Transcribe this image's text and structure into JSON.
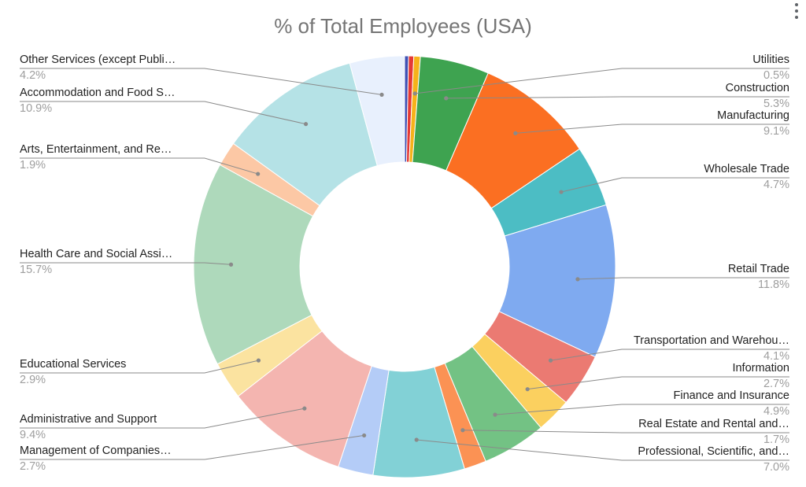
{
  "chart_data": {
    "type": "pie",
    "donut": true,
    "title": "% of Total Employees (USA)",
    "legend": "labels",
    "slices": [
      {
        "label": "",
        "display": "",
        "value": 0.3,
        "color": "#3f51b5"
      },
      {
        "label": "",
        "display": "",
        "value": 0.4,
        "color": "#e53935"
      },
      {
        "label": "Utilities",
        "display": "Utilities",
        "value": 0.5,
        "pct_label": "0.5%",
        "color": "#f6b21a"
      },
      {
        "label": "Construction",
        "display": "Construction",
        "value": 5.3,
        "pct_label": "5.3%",
        "color": "#3ea350"
      },
      {
        "label": "Manufacturing",
        "display": "Manufacturing",
        "value": 9.1,
        "pct_label": "9.1%",
        "color": "#fb6f22"
      },
      {
        "label": "Wholesale Trade",
        "display": "Wholesale Trade",
        "value": 4.7,
        "pct_label": "4.7%",
        "color": "#4cbdc4"
      },
      {
        "label": "Retail Trade",
        "display": "Retail Trade",
        "value": 11.8,
        "pct_label": "11.8%",
        "color": "#7faaf0"
      },
      {
        "label": "Transportation and Warehousing",
        "display": "Transportation and Warehou…",
        "value": 4.1,
        "pct_label": "4.1%",
        "color": "#eb7a72"
      },
      {
        "label": "Information",
        "display": "Information",
        "value": 2.7,
        "pct_label": "2.7%",
        "color": "#fbd05f"
      },
      {
        "label": "Finance and Insurance",
        "display": "Finance and Insurance",
        "value": 4.9,
        "pct_label": "4.9%",
        "color": "#73c284"
      },
      {
        "label": "Real Estate and Rental and Leasing",
        "display": "Real Estate and Rental and…",
        "value": 1.7,
        "pct_label": "1.7%",
        "color": "#fb9254"
      },
      {
        "label": "Professional, Scientific, and Technical Services",
        "display": "Professional, Scientific, and…",
        "value": 7.0,
        "pct_label": "7.0%",
        "color": "#82d1d6"
      },
      {
        "label": "Management of Companies and Enterprises",
        "display": "Management of Companies…",
        "value": 2.7,
        "pct_label": "2.7%",
        "color": "#b4ccf7"
      },
      {
        "label": "Administrative and Support",
        "display": "Administrative and Support",
        "value": 9.4,
        "pct_label": "9.4%",
        "color": "#f4b5b0"
      },
      {
        "label": "Educational Services",
        "display": "Educational Services",
        "value": 2.9,
        "pct_label": "2.9%",
        "color": "#fbe3a0"
      },
      {
        "label": "Health Care and Social Assistance",
        "display": "Health Care and Social Assi…",
        "value": 15.7,
        "pct_label": "15.7%",
        "color": "#aed9bb"
      },
      {
        "label": "Arts, Entertainment, and Recreation",
        "display": "Arts, Entertainment, and Re…",
        "value": 1.9,
        "pct_label": "1.9%",
        "color": "#fcc8a5"
      },
      {
        "label": "Accommodation and Food Services",
        "display": "Accommodation and Food S…",
        "value": 10.9,
        "pct_label": "10.9%",
        "color": "#b5e2e6"
      },
      {
        "label": "Other Services (except Public Administration)",
        "display": "Other Services (except Publi…",
        "value": 4.2,
        "pct_label": "4.2%",
        "color": "#e8f0fd"
      }
    ]
  },
  "colors": {
    "title": "#757575",
    "label": "#222222",
    "pct": "#9e9e9e",
    "leader": "#8a8a8a"
  }
}
